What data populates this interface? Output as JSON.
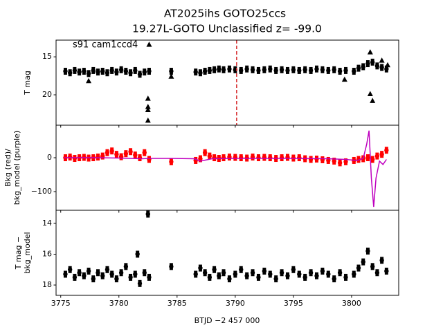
{
  "chart_data": [
    {
      "type": "scatter",
      "title": "AT2025ihs  GOTO25ccs",
      "subtitle": "19.27L-GOTO Unclassified z= -99.0",
      "annotations": [
        "s91 cam1ccd4"
      ],
      "ylabel": [
        "T mag"
      ],
      "xlim": [
        3774.6,
        3804.05
      ],
      "xticks": [
        3775,
        3780,
        3785,
        3790,
        3795,
        3800
      ],
      "ylim": [
        24,
        12.8
      ],
      "yticks": [
        15,
        20
      ],
      "vlines": [
        {
          "x": 3790.12,
          "color": "#d62728",
          "style": "dashed"
        }
      ],
      "series": [
        {
          "marker": "o",
          "color": "#000000",
          "x": [
            3775.4,
            3775.8,
            3776.2,
            3776.6,
            3777.0,
            3777.4,
            3777.8,
            3778.2,
            3778.6,
            3779.0,
            3779.4,
            3779.8,
            3780.2,
            3780.6,
            3781.0,
            3781.4,
            3781.8,
            3782.2,
            3782.6,
            3784.5,
            3786.6,
            3787.0,
            3787.4,
            3787.8,
            3788.2,
            3788.6,
            3789.0,
            3789.5,
            3790.0,
            3790.5,
            3791.0,
            3791.5,
            3792.0,
            3792.5,
            3793.0,
            3793.5,
            3794.0,
            3794.5,
            3795.0,
            3795.5,
            3796.0,
            3796.5,
            3797.0,
            3797.5,
            3798.0,
            3798.5,
            3799.0,
            3799.5,
            3800.2,
            3800.6,
            3801.0,
            3801.4,
            3801.8,
            3802.2,
            3802.6,
            3803.0
          ],
          "values": [
            16.9,
            17.1,
            16.8,
            17.0,
            16.9,
            17.2,
            16.8,
            17.0,
            16.9,
            17.1,
            16.8,
            17.0,
            16.7,
            16.9,
            17.1,
            16.8,
            17.3,
            17.0,
            16.9,
            16.9,
            17.0,
            17.1,
            16.9,
            16.8,
            16.7,
            16.6,
            16.7,
            16.6,
            16.7,
            16.8,
            16.6,
            16.7,
            16.8,
            16.7,
            16.6,
            16.8,
            16.7,
            16.8,
            16.7,
            16.8,
            16.7,
            16.8,
            16.6,
            16.7,
            16.8,
            16.7,
            16.9,
            16.8,
            16.9,
            16.5,
            16.3,
            15.9,
            15.7,
            16.2,
            16.4,
            16.6
          ]
        },
        {
          "marker": "^",
          "color": "#000000",
          "x": [
            3777.4,
            3782.5,
            3782.5,
            3782.5,
            3782.5,
            3782.6,
            3784.5,
            3799.4,
            3801.6,
            3801.6,
            3801.8,
            3802.6,
            3803.1
          ],
          "values": [
            18.2,
            20.5,
            21.6,
            22.0,
            23.4,
            13.4,
            17.6,
            18.0,
            14.4,
            19.9,
            20.8,
            15.5,
            16.1
          ]
        }
      ]
    },
    {
      "type": "scatter",
      "ylabel": [
        "Bkg (red)/",
        "bkg_model (purple)"
      ],
      "xlim": [
        3774.6,
        3804.05
      ],
      "xticks": [
        3775,
        3780,
        3785,
        3790,
        3795,
        3800
      ],
      "ylim": [
        -155,
        96
      ],
      "yticks": [
        0,
        {
          "value": -100,
          "label": "−100"
        }
      ],
      "series": [
        {
          "marker": "o",
          "color": "#ff0000",
          "x": [
            3775.4,
            3775.8,
            3776.2,
            3776.6,
            3777.0,
            3777.4,
            3777.8,
            3778.2,
            3778.6,
            3779.0,
            3779.4,
            3779.8,
            3780.2,
            3780.6,
            3781.0,
            3781.4,
            3781.8,
            3782.2,
            3782.6,
            3784.5,
            3786.6,
            3787.0,
            3787.4,
            3787.8,
            3788.2,
            3788.6,
            3789.0,
            3789.5,
            3790.0,
            3790.5,
            3791.0,
            3791.5,
            3792.0,
            3792.5,
            3793.0,
            3793.5,
            3794.0,
            3794.5,
            3795.0,
            3795.5,
            3796.0,
            3796.5,
            3797.0,
            3797.5,
            3798.0,
            3798.5,
            3799.0,
            3799.5,
            3800.2,
            3800.6,
            3801.0,
            3801.4,
            3801.8,
            3802.2,
            3802.6,
            3803.0
          ],
          "values": [
            0,
            2,
            -2,
            0,
            1,
            -1,
            0,
            2,
            5,
            15,
            20,
            10,
            3,
            12,
            18,
            8,
            0,
            15,
            -5,
            -12,
            -8,
            -3,
            15,
            5,
            0,
            -2,
            0,
            2,
            1,
            0,
            -1,
            2,
            0,
            1,
            0,
            -2,
            0,
            1,
            -1,
            0,
            -3,
            -5,
            -4,
            -6,
            -8,
            -10,
            -15,
            -12,
            -8,
            -5,
            -3,
            0,
            -5,
            5,
            10,
            22
          ]
        },
        {
          "marker": "line",
          "color": "#bf00bf",
          "x": [
            3775.3,
            3778,
            3780,
            3782,
            3782.6,
            3784.5,
            3786.5,
            3787,
            3788,
            3790,
            3795,
            3798,
            3799.5,
            3800.5,
            3801,
            3801.3,
            3801.5,
            3801.7,
            3801.9,
            3802.1,
            3802.4,
            3802.7,
            3803
          ],
          "values": [
            0,
            0,
            -1,
            -3,
            -2,
            -2,
            -3,
            -10,
            -3,
            -2,
            -2,
            -3,
            -5,
            -8,
            -2,
            40,
            80,
            -60,
            -145,
            -60,
            -10,
            -20,
            -5
          ]
        }
      ]
    },
    {
      "type": "scatter",
      "ylabel": [
        "T mag −",
        "bkg_model"
      ],
      "xlabel": "BTJD −2 457 000",
      "xlim": [
        3774.6,
        3804.05
      ],
      "xticks": [
        3775,
        3780,
        3785,
        3790,
        3795,
        3800
      ],
      "ylim": [
        18.67,
        13.15
      ],
      "yticks": [
        14,
        16,
        18
      ],
      "series": [
        {
          "marker": "o",
          "color": "#000000",
          "x": [
            3775.4,
            3775.8,
            3776.2,
            3776.6,
            3777.0,
            3777.4,
            3777.8,
            3778.2,
            3778.6,
            3779.0,
            3779.4,
            3779.8,
            3780.2,
            3780.6,
            3781.0,
            3781.4,
            3781.8,
            3782.2,
            3782.6,
            3784.5,
            3786.6,
            3787.0,
            3787.4,
            3787.8,
            3788.2,
            3788.6,
            3789.0,
            3789.5,
            3790.0,
            3790.5,
            3791.0,
            3791.5,
            3792.0,
            3792.5,
            3793.0,
            3793.5,
            3794.0,
            3794.5,
            3795.0,
            3795.5,
            3796.0,
            3796.5,
            3797.0,
            3797.5,
            3798.0,
            3798.5,
            3799.0,
            3799.5,
            3800.2,
            3800.6,
            3801.0,
            3801.4,
            3801.8,
            3802.2,
            3802.6,
            3803.0,
            3782.5,
            3781.6
          ],
          "values": [
            17.3,
            17.0,
            17.5,
            17.2,
            17.4,
            17.1,
            17.6,
            17.2,
            17.4,
            17.0,
            17.3,
            17.6,
            17.2,
            16.8,
            17.5,
            17.3,
            17.9,
            17.2,
            17.5,
            16.8,
            17.3,
            16.9,
            17.2,
            17.5,
            17.0,
            17.4,
            17.2,
            17.6,
            17.3,
            17.0,
            17.4,
            17.2,
            17.5,
            17.1,
            17.3,
            17.6,
            17.2,
            17.4,
            17.0,
            17.3,
            17.5,
            17.2,
            17.4,
            17.1,
            17.3,
            17.6,
            17.2,
            17.5,
            17.3,
            16.9,
            16.5,
            15.8,
            16.8,
            17.2,
            16.4,
            17.1,
            13.4,
            16.0
          ]
        }
      ]
    }
  ]
}
